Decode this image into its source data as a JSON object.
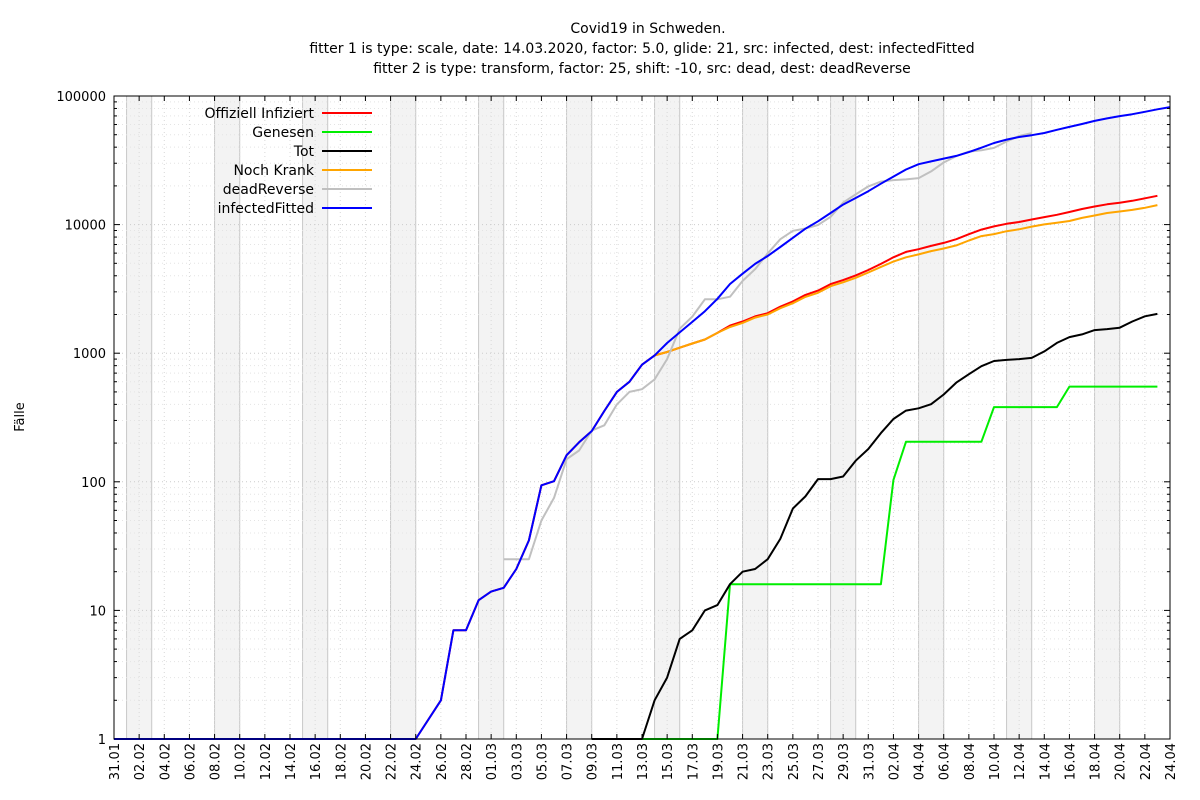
{
  "chart_data": {
    "type": "line",
    "title": "Covid19 in Schweden.",
    "subtitle": [
      "fitter 1 is type: scale, date: 14.03.2020, factor: 5.0, glide: 21, src: infected, dest: infectedFitted",
      "fitter 2 is type: transform, factor: 25, shift: -10, src: dead, dest: deadReverse"
    ],
    "ylabel": "Fälle",
    "xlabel": "",
    "y_scale": "log",
    "ylim": [
      1,
      100000
    ],
    "y_ticks": [
      "1",
      "10",
      "100",
      "1000",
      "10000",
      "100000"
    ],
    "x_ticks": [
      "31.01",
      "02.02",
      "04.02",
      "06.02",
      "08.02",
      "10.02",
      "12.02",
      "14.02",
      "16.02",
      "18.02",
      "20.02",
      "22.02",
      "24.02",
      "26.02",
      "28.02",
      "01.03",
      "03.03",
      "05.03",
      "07.03",
      "09.03",
      "11.03",
      "13.03",
      "15.03",
      "17.03",
      "19.03",
      "21.03",
      "23.03",
      "25.03",
      "27.03",
      "29.03",
      "31.03",
      "02.04",
      "04.04",
      "06.04",
      "08.04",
      "10.04",
      "12.04",
      "14.04",
      "16.04",
      "18.04",
      "20.04",
      "22.04",
      "24.04"
    ],
    "x_range": [
      "2020-01-31",
      "2020-04-24"
    ],
    "weekend_shading": true,
    "grid": true,
    "legend_position": "top-left",
    "series": [
      {
        "name": "Offiziell Infiziert",
        "color": "#ff0000",
        "points": [
          [
            "2020-01-31",
            1
          ],
          [
            "2020-02-24",
            1
          ],
          [
            "2020-02-26",
            2
          ],
          [
            "2020-02-27",
            7
          ],
          [
            "2020-02-28",
            7
          ],
          [
            "2020-02-29",
            12
          ],
          [
            "2020-03-01",
            14
          ],
          [
            "2020-03-02",
            15
          ],
          [
            "2020-03-03",
            21
          ],
          [
            "2020-03-04",
            35
          ],
          [
            "2020-03-05",
            94
          ],
          [
            "2020-03-06",
            101
          ],
          [
            "2020-03-07",
            161
          ],
          [
            "2020-03-08",
            203
          ],
          [
            "2020-03-09",
            248
          ],
          [
            "2020-03-10",
            355
          ],
          [
            "2020-03-11",
            500
          ],
          [
            "2020-03-12",
            599
          ],
          [
            "2020-03-13",
            814
          ],
          [
            "2020-03-14",
            961
          ],
          [
            "2020-03-15",
            1022
          ],
          [
            "2020-03-16",
            1103
          ],
          [
            "2020-03-17",
            1190
          ],
          [
            "2020-03-18",
            1279
          ],
          [
            "2020-03-19",
            1439
          ],
          [
            "2020-03-20",
            1639
          ],
          [
            "2020-03-21",
            1763
          ],
          [
            "2020-03-22",
            1934
          ],
          [
            "2020-03-23",
            2046
          ],
          [
            "2020-03-24",
            2299
          ],
          [
            "2020-03-25",
            2526
          ],
          [
            "2020-03-26",
            2840
          ],
          [
            "2020-03-27",
            3069
          ],
          [
            "2020-03-28",
            3447
          ],
          [
            "2020-03-29",
            3700
          ],
          [
            "2020-03-30",
            4028
          ],
          [
            "2020-03-31",
            4435
          ],
          [
            "2020-04-01",
            4947
          ],
          [
            "2020-04-02",
            5568
          ],
          [
            "2020-04-03",
            6131
          ],
          [
            "2020-04-04",
            6443
          ],
          [
            "2020-04-05",
            6830
          ],
          [
            "2020-04-06",
            7206
          ],
          [
            "2020-04-07",
            7693
          ],
          [
            "2020-04-08",
            8419
          ],
          [
            "2020-04-09",
            9141
          ],
          [
            "2020-04-10",
            9685
          ],
          [
            "2020-04-11",
            10151
          ],
          [
            "2020-04-12",
            10483
          ],
          [
            "2020-04-13",
            10948
          ],
          [
            "2020-04-14",
            11445
          ],
          [
            "2020-04-15",
            11927
          ],
          [
            "2020-04-16",
            12540
          ],
          [
            "2020-04-17",
            13216
          ],
          [
            "2020-04-18",
            13822
          ],
          [
            "2020-04-19",
            14385
          ],
          [
            "2020-04-20",
            14777
          ],
          [
            "2020-04-21",
            15322
          ],
          [
            "2020-04-22",
            16004
          ],
          [
            "2020-04-23",
            16755
          ]
        ]
      },
      {
        "name": "Genesen",
        "color": "#00ee00",
        "points": [
          [
            "2020-03-09",
            1
          ],
          [
            "2020-03-19",
            1
          ],
          [
            "2020-03-20",
            16
          ],
          [
            "2020-04-01",
            16
          ],
          [
            "2020-04-02",
            103
          ],
          [
            "2020-04-03",
            205
          ],
          [
            "2020-04-09",
            205
          ],
          [
            "2020-04-10",
            381
          ],
          [
            "2020-04-15",
            381
          ],
          [
            "2020-04-16",
            550
          ],
          [
            "2020-04-23",
            550
          ]
        ]
      },
      {
        "name": "Tot",
        "color": "#000000",
        "points": [
          [
            "2020-03-09",
            1
          ],
          [
            "2020-03-13",
            1
          ],
          [
            "2020-03-14",
            2
          ],
          [
            "2020-03-15",
            3
          ],
          [
            "2020-03-16",
            6
          ],
          [
            "2020-03-17",
            7
          ],
          [
            "2020-03-18",
            10
          ],
          [
            "2020-03-19",
            11
          ],
          [
            "2020-03-20",
            16
          ],
          [
            "2020-03-21",
            20
          ],
          [
            "2020-03-22",
            21
          ],
          [
            "2020-03-23",
            25
          ],
          [
            "2020-03-24",
            36
          ],
          [
            "2020-03-25",
            62
          ],
          [
            "2020-03-26",
            77
          ],
          [
            "2020-03-27",
            105
          ],
          [
            "2020-03-28",
            105
          ],
          [
            "2020-03-29",
            110
          ],
          [
            "2020-03-30",
            146
          ],
          [
            "2020-03-31",
            180
          ],
          [
            "2020-04-01",
            239
          ],
          [
            "2020-04-02",
            308
          ],
          [
            "2020-04-03",
            358
          ],
          [
            "2020-04-04",
            373
          ],
          [
            "2020-04-05",
            401
          ],
          [
            "2020-04-06",
            477
          ],
          [
            "2020-04-07",
            591
          ],
          [
            "2020-04-08",
            687
          ],
          [
            "2020-04-09",
            793
          ],
          [
            "2020-04-10",
            870
          ],
          [
            "2020-04-11",
            887
          ],
          [
            "2020-04-12",
            899
          ],
          [
            "2020-04-13",
            919
          ],
          [
            "2020-04-14",
            1033
          ],
          [
            "2020-04-15",
            1203
          ],
          [
            "2020-04-16",
            1333
          ],
          [
            "2020-04-17",
            1400
          ],
          [
            "2020-04-18",
            1511
          ],
          [
            "2020-04-19",
            1540
          ],
          [
            "2020-04-20",
            1580
          ],
          [
            "2020-04-21",
            1765
          ],
          [
            "2020-04-22",
            1937
          ],
          [
            "2020-04-23",
            2021
          ]
        ]
      },
      {
        "name": "Noch Krank",
        "color": "#ffa500",
        "points": [
          [
            "2020-03-14",
            961
          ],
          [
            "2020-03-15",
            1022
          ],
          [
            "2020-03-16",
            1103
          ],
          [
            "2020-03-17",
            1190
          ],
          [
            "2020-03-18",
            1279
          ],
          [
            "2020-03-19",
            1439
          ],
          [
            "2020-03-20",
            1600
          ],
          [
            "2020-03-21",
            1720
          ],
          [
            "2020-03-22",
            1890
          ],
          [
            "2020-03-23",
            2000
          ],
          [
            "2020-03-24",
            2240
          ],
          [
            "2020-03-25",
            2450
          ],
          [
            "2020-03-26",
            2740
          ],
          [
            "2020-03-27",
            2950
          ],
          [
            "2020-03-28",
            3320
          ],
          [
            "2020-03-29",
            3560
          ],
          [
            "2020-03-30",
            3860
          ],
          [
            "2020-03-31",
            4240
          ],
          [
            "2020-04-01",
            4690
          ],
          [
            "2020-04-02",
            5160
          ],
          [
            "2020-04-03",
            5570
          ],
          [
            "2020-04-04",
            5860
          ],
          [
            "2020-04-05",
            6220
          ],
          [
            "2020-04-06",
            6520
          ],
          [
            "2020-04-07",
            6890
          ],
          [
            "2020-04-08",
            7520
          ],
          [
            "2020-04-09",
            8140
          ],
          [
            "2020-04-10",
            8430
          ],
          [
            "2020-04-11",
            8880
          ],
          [
            "2020-04-12",
            9200
          ],
          [
            "2020-04-13",
            9650
          ],
          [
            "2020-04-14",
            10030
          ],
          [
            "2020-04-15",
            10340
          ],
          [
            "2020-04-16",
            10660
          ],
          [
            "2020-04-17",
            11270
          ],
          [
            "2020-04-18",
            11760
          ],
          [
            "2020-04-19",
            12300
          ],
          [
            "2020-04-20",
            12650
          ],
          [
            "2020-04-21",
            13010
          ],
          [
            "2020-04-22",
            13520
          ],
          [
            "2020-04-23",
            14180
          ]
        ]
      },
      {
        "name": "deadReverse",
        "color": "#c0c0c0",
        "points": [
          [
            "2020-03-02",
            25
          ],
          [
            "2020-03-04",
            25
          ],
          [
            "2020-03-05",
            50
          ],
          [
            "2020-03-06",
            75
          ],
          [
            "2020-03-07",
            150
          ],
          [
            "2020-03-08",
            175
          ],
          [
            "2020-03-09",
            250
          ],
          [
            "2020-03-10",
            275
          ],
          [
            "2020-03-11",
            400
          ],
          [
            "2020-03-12",
            500
          ],
          [
            "2020-03-13",
            525
          ],
          [
            "2020-03-14",
            625
          ],
          [
            "2020-03-15",
            900
          ],
          [
            "2020-03-16",
            1550
          ],
          [
            "2020-03-17",
            1925
          ],
          [
            "2020-03-18",
            2625
          ],
          [
            "2020-03-19",
            2625
          ],
          [
            "2020-03-20",
            2750
          ],
          [
            "2020-03-21",
            3650
          ],
          [
            "2020-03-22",
            4500
          ],
          [
            "2020-03-23",
            5975
          ],
          [
            "2020-03-24",
            7700
          ],
          [
            "2020-03-25",
            8950
          ],
          [
            "2020-03-26",
            9325
          ],
          [
            "2020-03-27",
            9925
          ],
          [
            "2020-03-28",
            11500
          ],
          [
            "2020-03-29",
            14825
          ],
          [
            "2020-03-30",
            17175
          ],
          [
            "2020-03-31",
            19800
          ],
          [
            "2020-04-01",
            21600
          ],
          [
            "2020-04-02",
            22200
          ],
          [
            "2020-04-03",
            22475
          ],
          [
            "2020-04-04",
            22975
          ],
          [
            "2020-04-05",
            25900
          ],
          [
            "2020-04-06",
            30375
          ],
          [
            "2020-04-07",
            34075
          ],
          [
            "2020-04-08",
            36925
          ],
          [
            "2020-04-09",
            37800
          ],
          [
            "2020-04-10",
            39500
          ],
          [
            "2020-04-11",
            44300
          ],
          [
            "2020-04-12",
            48900
          ],
          [
            "2020-04-13",
            51500
          ]
        ]
      },
      {
        "name": "infectedFitted",
        "color": "#0000ff",
        "points": [
          [
            "2020-01-31",
            1
          ],
          [
            "2020-02-24",
            1
          ],
          [
            "2020-02-26",
            2
          ],
          [
            "2020-02-27",
            7
          ],
          [
            "2020-02-28",
            7
          ],
          [
            "2020-02-29",
            12
          ],
          [
            "2020-03-01",
            14
          ],
          [
            "2020-03-02",
            15
          ],
          [
            "2020-03-03",
            21
          ],
          [
            "2020-03-04",
            35
          ],
          [
            "2020-03-05",
            94
          ],
          [
            "2020-03-06",
            101
          ],
          [
            "2020-03-07",
            161
          ],
          [
            "2020-03-08",
            203
          ],
          [
            "2020-03-09",
            248
          ],
          [
            "2020-03-10",
            355
          ],
          [
            "2020-03-11",
            500
          ],
          [
            "2020-03-12",
            599
          ],
          [
            "2020-03-13",
            814
          ],
          [
            "2020-03-14",
            961
          ],
          [
            "2020-03-15",
            1200
          ],
          [
            "2020-03-16",
            1450
          ],
          [
            "2020-03-17",
            1750
          ],
          [
            "2020-03-18",
            2120
          ],
          [
            "2020-03-19",
            2650
          ],
          [
            "2020-03-20",
            3450
          ],
          [
            "2020-03-21",
            4150
          ],
          [
            "2020-03-22",
            4950
          ],
          [
            "2020-03-23",
            5700
          ],
          [
            "2020-03-24",
            6700
          ],
          [
            "2020-03-25",
            7900
          ],
          [
            "2020-03-26",
            9300
          ],
          [
            "2020-03-27",
            10600
          ],
          [
            "2020-03-28",
            12300
          ],
          [
            "2020-03-29",
            14300
          ],
          [
            "2020-03-30",
            16100
          ],
          [
            "2020-03-31",
            18200
          ],
          [
            "2020-04-01",
            20800
          ],
          [
            "2020-04-02",
            23600
          ],
          [
            "2020-04-03",
            26800
          ],
          [
            "2020-04-04",
            29500
          ],
          [
            "2020-04-05",
            31000
          ],
          [
            "2020-04-06",
            32600
          ],
          [
            "2020-04-07",
            34200
          ],
          [
            "2020-04-08",
            36600
          ],
          [
            "2020-04-09",
            39600
          ],
          [
            "2020-04-10",
            43100
          ],
          [
            "2020-04-11",
            45800
          ],
          [
            "2020-04-12",
            48000
          ],
          [
            "2020-04-13",
            49600
          ],
          [
            "2020-04-14",
            51600
          ],
          [
            "2020-04-15",
            54600
          ],
          [
            "2020-04-16",
            57500
          ],
          [
            "2020-04-17",
            60600
          ],
          [
            "2020-04-18",
            64000
          ],
          [
            "2020-04-19",
            67000
          ],
          [
            "2020-04-20",
            69800
          ],
          [
            "2020-04-21",
            72200
          ],
          [
            "2020-04-22",
            75400
          ],
          [
            "2020-04-23",
            78800
          ],
          [
            "2020-04-24",
            82000
          ]
        ]
      }
    ]
  }
}
